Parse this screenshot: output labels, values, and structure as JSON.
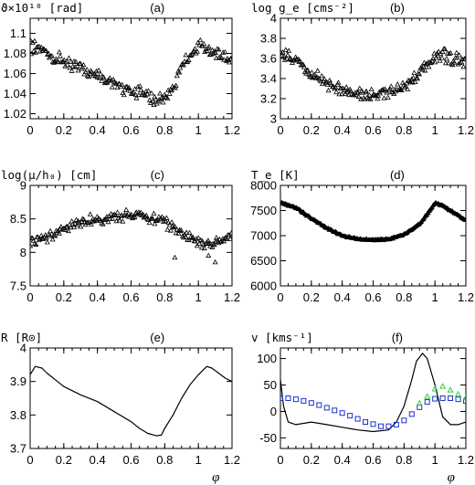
{
  "colors": {
    "axis": "#000000",
    "line": "#000000",
    "vr_blue": "#1a33cc",
    "vr_green": "#33cc33"
  },
  "chart_data": [
    {
      "id": "a",
      "type": "scatter",
      "tag": "(a)",
      "ylabel": "ϑ×10¹⁰ [rad]",
      "xlim": [
        0,
        1.2
      ],
      "ylim": [
        1.015,
        1.115
      ],
      "xticks": [
        "0",
        "0.2",
        "0.4",
        "0.6",
        "0.8",
        "1",
        "1.2"
      ],
      "yticks": [
        "1.02",
        "1.04",
        "1.06",
        "1.08",
        "1.1"
      ],
      "marker": "triangle",
      "curve_x": [
        0,
        0.05,
        0.1,
        0.15,
        0.2,
        0.3,
        0.4,
        0.5,
        0.6,
        0.7,
        0.75,
        0.8,
        0.85,
        0.88,
        0.92,
        0.95,
        1.0,
        1.05,
        1.1,
        1.15,
        1.2
      ],
      "curve_y": [
        1.087,
        1.085,
        1.08,
        1.076,
        1.072,
        1.065,
        1.058,
        1.05,
        1.043,
        1.037,
        1.034,
        1.036,
        1.045,
        1.057,
        1.072,
        1.08,
        1.087,
        1.085,
        1.08,
        1.076,
        1.072
      ],
      "noise": 0.005
    },
    {
      "id": "b",
      "type": "scatter",
      "tag": "(b)",
      "ylabel": "log g_e [cms⁻²]",
      "xlim": [
        0,
        1.2
      ],
      "ylim": [
        3.0,
        4.0
      ],
      "xticks": [
        "0",
        "0.2",
        "0.4",
        "0.6",
        "0.8",
        "1",
        "1.2"
      ],
      "yticks": [
        "3",
        "3.2",
        "3.4",
        "3.6",
        "3.8",
        "4"
      ],
      "marker": "triangle",
      "curve_x": [
        0,
        0.1,
        0.2,
        0.3,
        0.4,
        0.5,
        0.6,
        0.7,
        0.8,
        0.9,
        1.0,
        1.05,
        1.1,
        1.2
      ],
      "curve_y": [
        3.65,
        3.57,
        3.45,
        3.35,
        3.28,
        3.25,
        3.24,
        3.26,
        3.32,
        3.45,
        3.6,
        3.63,
        3.6,
        3.55
      ],
      "noise": 0.05
    },
    {
      "id": "c",
      "type": "scatter",
      "tag": "(c)",
      "ylabel": "log(μ/h₀) [cm]",
      "xlim": [
        0,
        1.2
      ],
      "ylim": [
        7.5,
        9.0
      ],
      "xticks": [
        "0",
        "0.2",
        "0.4",
        "0.6",
        "0.8",
        "1",
        "1.2"
      ],
      "yticks": [
        "7.5",
        "8",
        "8.5",
        "9"
      ],
      "marker": "triangle",
      "curve_x": [
        0,
        0.1,
        0.2,
        0.3,
        0.4,
        0.5,
        0.6,
        0.7,
        0.8,
        0.9,
        1.0,
        1.05,
        1.1,
        1.2
      ],
      "curve_y": [
        8.15,
        8.2,
        8.35,
        8.45,
        8.5,
        8.53,
        8.55,
        8.52,
        8.45,
        8.3,
        8.15,
        8.12,
        8.15,
        8.25
      ],
      "noise": 0.06,
      "outliers": [
        [
          0.86,
          7.92
        ],
        [
          1.06,
          7.95
        ],
        [
          1.1,
          7.85
        ]
      ]
    },
    {
      "id": "d",
      "type": "scatter",
      "tag": "(d)",
      "ylabel": "T_e [K]",
      "xlim": [
        0,
        1.2
      ],
      "ylim": [
        6000,
        8000
      ],
      "xticks": [
        "0",
        "0.2",
        "0.4",
        "0.6",
        "0.8",
        "1",
        "1.2"
      ],
      "yticks": [
        "6000",
        "6500",
        "7000",
        "7500",
        "8000"
      ],
      "marker": "filled",
      "curve_x": [
        0,
        0.1,
        0.2,
        0.3,
        0.4,
        0.5,
        0.6,
        0.7,
        0.8,
        0.9,
        0.95,
        1.0,
        1.05,
        1.1,
        1.15,
        1.2
      ],
      "curve_y": [
        7650,
        7550,
        7350,
        7150,
        7000,
        6930,
        6910,
        6930,
        7020,
        7230,
        7430,
        7650,
        7600,
        7500,
        7400,
        7300
      ],
      "noise": 15
    },
    {
      "id": "e",
      "type": "line",
      "tag": "(e)",
      "ylabel": "R [R⊙]",
      "xlabel": "φ",
      "xlim": [
        0,
        1.2
      ],
      "ylim": [
        3.7,
        4.0
      ],
      "xticks": [
        "0",
        "0.2",
        "0.4",
        "0.6",
        "0.8",
        "1",
        "1.2"
      ],
      "yticks": [
        "3.7",
        "3.8",
        "3.9",
        "4"
      ],
      "x": [
        0,
        0.03,
        0.07,
        0.1,
        0.15,
        0.2,
        0.3,
        0.4,
        0.5,
        0.6,
        0.65,
        0.7,
        0.75,
        0.78,
        0.8,
        0.85,
        0.9,
        0.95,
        1.0,
        1.05,
        1.08,
        1.12,
        1.16,
        1.2
      ],
      "y": [
        3.92,
        3.945,
        3.94,
        3.925,
        3.905,
        3.885,
        3.86,
        3.84,
        3.81,
        3.78,
        3.76,
        3.745,
        3.738,
        3.74,
        3.76,
        3.8,
        3.85,
        3.89,
        3.92,
        3.945,
        3.94,
        3.925,
        3.91,
        3.9
      ]
    },
    {
      "id": "f",
      "type": "line",
      "tag": "(f)",
      "ylabel": "v [kms⁻¹]",
      "xlabel": "φ",
      "xlim": [
        0,
        1.2
      ],
      "ylim": [
        -70,
        120
      ],
      "xticks": [
        "0",
        "0.2",
        "0.4",
        "0.6",
        "0.8",
        "1",
        "1.2"
      ],
      "yticks": [
        "-50",
        "0",
        "50",
        "100"
      ],
      "x": [
        0,
        0.02,
        0.05,
        0.1,
        0.2,
        0.3,
        0.4,
        0.5,
        0.6,
        0.7,
        0.75,
        0.8,
        0.85,
        0.88,
        0.92,
        0.95,
        1.0,
        1.05,
        1.1,
        1.15,
        1.2
      ],
      "y": [
        60,
        10,
        -20,
        -25,
        -20,
        -25,
        -30,
        -35,
        -38,
        -35,
        -20,
        10,
        60,
        95,
        110,
        100,
        50,
        -10,
        -25,
        -25,
        -20
      ],
      "series": [
        {
          "color": "#1a33cc",
          "marker": "square",
          "x": [
            0,
            0.05,
            0.1,
            0.15,
            0.2,
            0.25,
            0.3,
            0.35,
            0.4,
            0.45,
            0.5,
            0.55,
            0.6,
            0.65,
            0.7,
            0.75,
            0.8,
            0.85,
            0.9,
            0.95,
            1.0,
            1.05,
            1.1,
            1.15,
            1.2
          ],
          "y": [
            25,
            25,
            23,
            20,
            16,
            12,
            7,
            2,
            -3,
            -8,
            -14,
            -20,
            -24,
            -28,
            -28,
            -25,
            -17,
            -5,
            8,
            18,
            24,
            25,
            25,
            23,
            20
          ]
        },
        {
          "color": "#33cc33",
          "marker": "triangle",
          "x": [
            0.9,
            0.95,
            1.0,
            1.05,
            1.1,
            1.15,
            1.2
          ],
          "y": [
            15,
            28,
            42,
            47,
            40,
            32,
            25
          ]
        }
      ]
    }
  ]
}
